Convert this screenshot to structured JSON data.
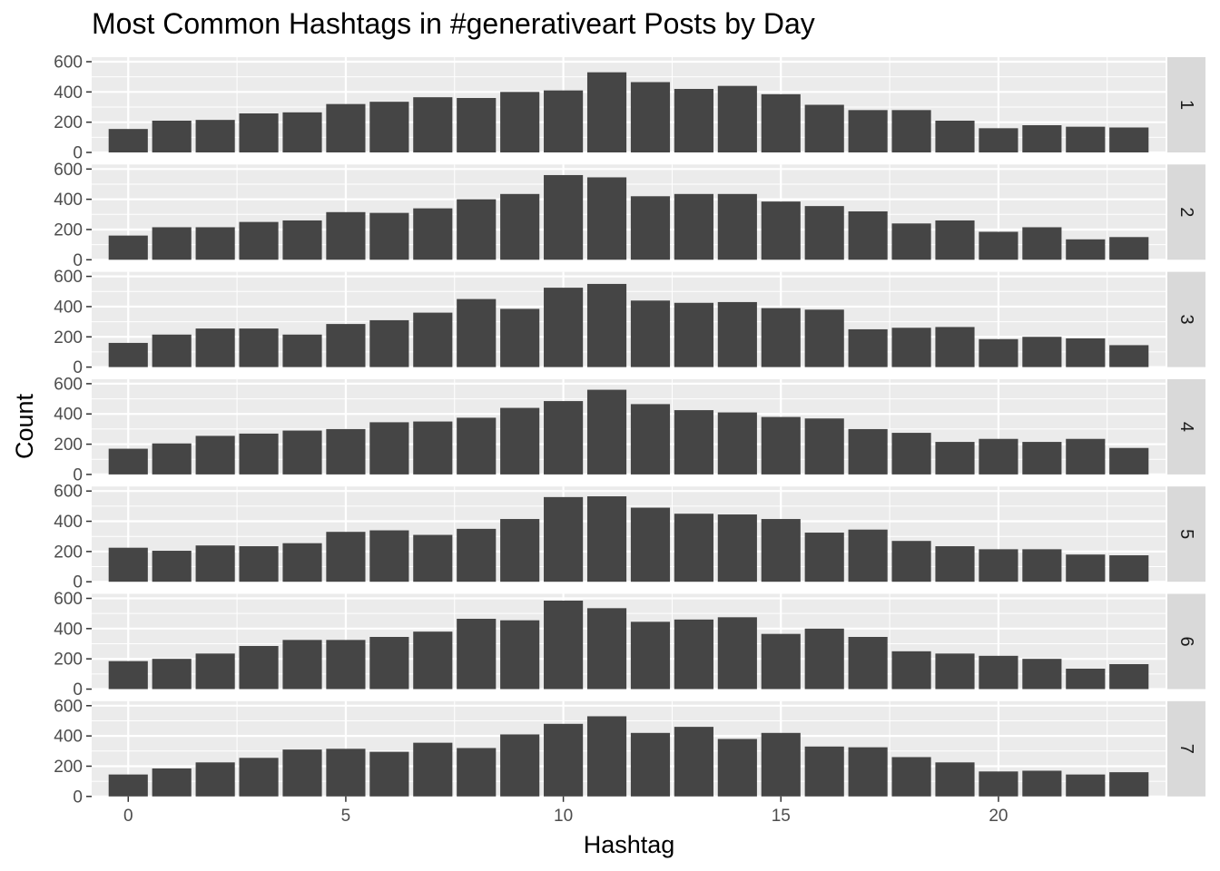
{
  "chart_data": {
    "type": "bar",
    "title": "Most Common Hashtags in #generativeart Posts by Day",
    "xlabel": "Hashtag",
    "ylabel": "Count",
    "x": [
      0,
      1,
      2,
      3,
      4,
      5,
      6,
      7,
      8,
      9,
      10,
      11,
      12,
      13,
      14,
      15,
      16,
      17,
      18,
      19,
      20,
      21,
      22,
      23
    ],
    "x_ticks": [
      0,
      5,
      10,
      15,
      20
    ],
    "y_ticks": [
      0,
      200,
      400,
      600
    ],
    "ylim": [
      0,
      630
    ],
    "facet_layout": "rows, strip labels on right",
    "grid": true,
    "colors": {
      "bar": "#454545",
      "panel": "#ebebeb",
      "grid": "#ffffff",
      "strip": "#d9d9d9"
    },
    "facets": [
      {
        "label": "1",
        "values": [
          155,
          210,
          215,
          258,
          265,
          320,
          335,
          365,
          360,
          400,
          410,
          530,
          465,
          420,
          440,
          385,
          315,
          280,
          280,
          210,
          160,
          180,
          170,
          165
        ]
      },
      {
        "label": "2",
        "values": [
          160,
          215,
          215,
          250,
          260,
          315,
          310,
          340,
          400,
          435,
          560,
          545,
          420,
          435,
          435,
          385,
          355,
          320,
          240,
          260,
          185,
          215,
          135,
          150
        ]
      },
      {
        "label": "3",
        "values": [
          160,
          215,
          255,
          255,
          215,
          285,
          310,
          360,
          450,
          385,
          525,
          550,
          440,
          425,
          430,
          390,
          380,
          250,
          260,
          265,
          185,
          200,
          190,
          145
        ]
      },
      {
        "label": "4",
        "values": [
          170,
          205,
          255,
          270,
          290,
          300,
          345,
          350,
          375,
          440,
          485,
          560,
          465,
          425,
          410,
          380,
          370,
          300,
          275,
          215,
          235,
          215,
          235,
          175
        ]
      },
      {
        "label": "5",
        "values": [
          225,
          205,
          240,
          235,
          255,
          330,
          340,
          310,
          350,
          415,
          560,
          565,
          490,
          450,
          445,
          415,
          325,
          345,
          270,
          235,
          215,
          215,
          180,
          175
        ]
      },
      {
        "label": "6",
        "values": [
          185,
          200,
          235,
          285,
          325,
          325,
          345,
          380,
          465,
          455,
          585,
          535,
          445,
          460,
          475,
          365,
          400,
          345,
          250,
          235,
          220,
          200,
          135,
          165
        ]
      },
      {
        "label": "7",
        "values": [
          145,
          185,
          225,
          255,
          310,
          315,
          295,
          355,
          320,
          410,
          480,
          530,
          420,
          460,
          380,
          420,
          330,
          325,
          260,
          225,
          165,
          170,
          145,
          160
        ]
      }
    ]
  }
}
